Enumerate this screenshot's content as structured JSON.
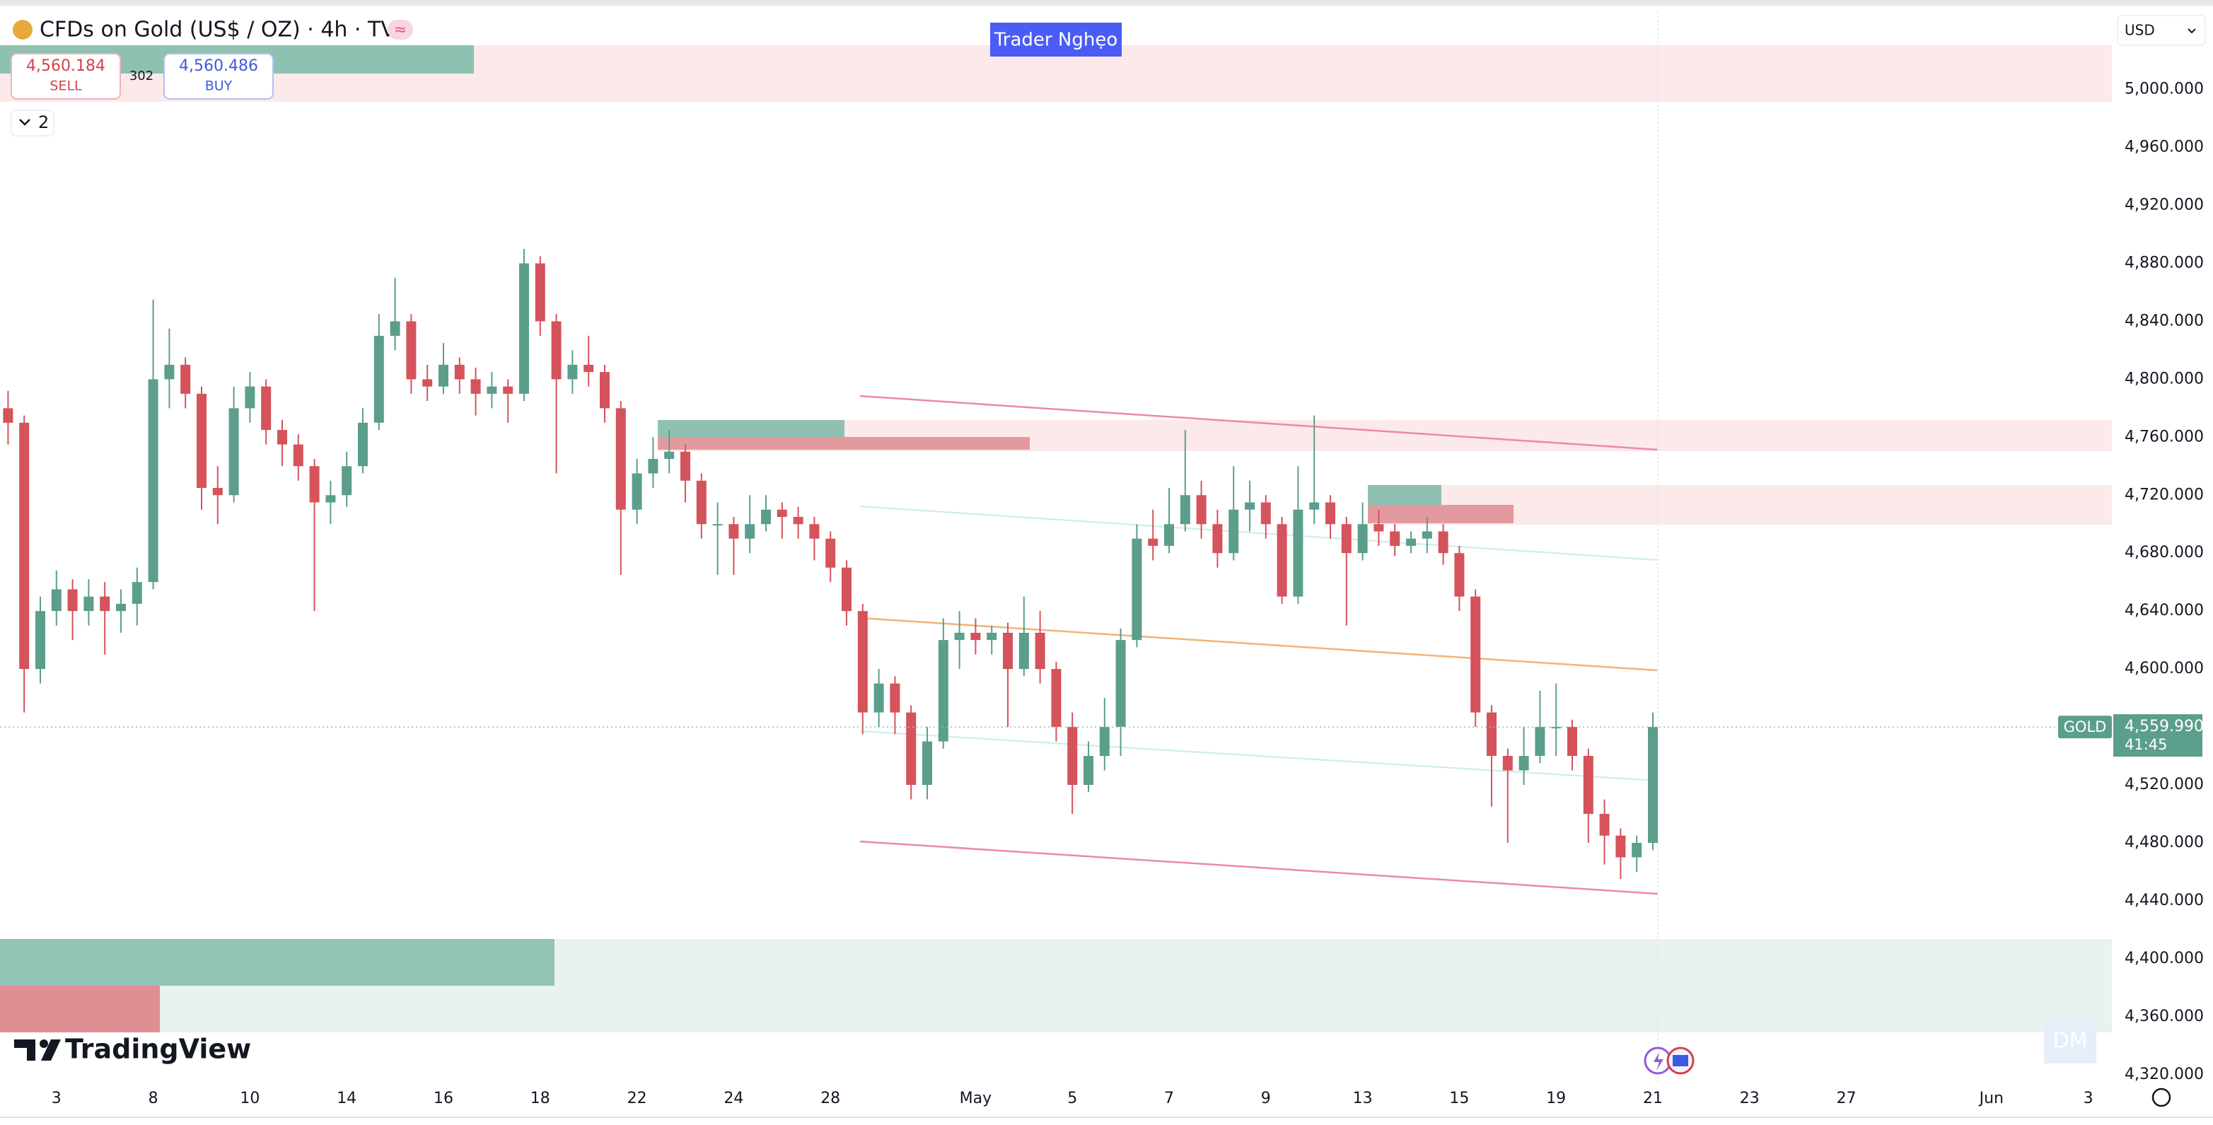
{
  "header": {
    "title": "CFDs on Gold (US$ / OZ) · 4h · TVC",
    "indicators_count": "2",
    "author": "Trader Nghẹo",
    "currency": "USD"
  },
  "trade": {
    "sell_price": "4,560.184",
    "sell": "SELL",
    "spread": "302",
    "buy_price": "4,560.486",
    "buy": "BUY"
  },
  "price_tag": {
    "symbol": "GOLD",
    "price": "4,559.990",
    "countdown": "41:45"
  },
  "footer": {
    "brand": "TradingView",
    "watermark": "DM"
  },
  "chart_data": {
    "type": "candlestick",
    "up_color": "#5b9e8c",
    "down_color": "#d5535b",
    "grid": false,
    "ylim": [
      4315,
      5054
    ],
    "yticks": [
      {
        "value": 5000,
        "label": "5,000.000"
      },
      {
        "value": 4960,
        "label": "4,960.000"
      },
      {
        "value": 4920,
        "label": "4,920.000"
      },
      {
        "value": 4880,
        "label": "4,880.000"
      },
      {
        "value": 4840,
        "label": "4,840.000"
      },
      {
        "value": 4800,
        "label": "4,800.000"
      },
      {
        "value": 4760,
        "label": "4,760.000"
      },
      {
        "value": 4720,
        "label": "4,720.000"
      },
      {
        "value": 4680,
        "label": "4,680.000"
      },
      {
        "value": 4640,
        "label": "4,640.000"
      },
      {
        "value": 4600,
        "label": "4,600.000"
      },
      {
        "value": 4520,
        "label": "4,520.000"
      },
      {
        "value": 4480,
        "label": "4,480.000"
      },
      {
        "value": 4440,
        "label": "4,440.000"
      },
      {
        "value": 4400,
        "label": "4,400.000"
      },
      {
        "value": 4360,
        "label": "4,360.000"
      },
      {
        "value": 4320,
        "label": "4,320.000"
      }
    ],
    "categories": [
      null,
      null,
      null,
      "3",
      null,
      null,
      null,
      null,
      null,
      "8",
      null,
      null,
      null,
      null,
      null,
      "10",
      null,
      null,
      null,
      null,
      null,
      "14",
      null,
      null,
      null,
      null,
      null,
      "16",
      null,
      null,
      null,
      null,
      null,
      "18",
      null,
      null,
      null,
      null,
      null,
      "22",
      null,
      null,
      null,
      null,
      null,
      "24",
      null,
      null,
      null,
      null,
      null,
      "28",
      null,
      null,
      null,
      null,
      null,
      null,
      null,
      null,
      "May",
      null,
      null,
      null,
      null,
      null,
      "5",
      null,
      null,
      null,
      null,
      null,
      "7",
      null,
      null,
      null,
      null,
      null,
      "9",
      null,
      null,
      null,
      null,
      null,
      "13",
      null,
      null,
      null,
      null,
      null,
      "15",
      null,
      null,
      null,
      null,
      null,
      "19",
      null,
      null,
      null,
      null,
      null,
      "21",
      null,
      null,
      null,
      null,
      null,
      "23",
      null,
      null,
      null,
      null,
      null,
      "27",
      null,
      null,
      null,
      null,
      null,
      null,
      null,
      null,
      "Jun",
      null,
      null,
      null,
      null,
      null,
      "3",
      null,
      null
    ],
    "candles": [
      [
        4780,
        4792,
        4755,
        4770
      ],
      [
        4770,
        4775,
        4570,
        4600
      ],
      [
        4600,
        4650,
        4590,
        4640
      ],
      [
        4640,
        4668,
        4630,
        4655
      ],
      [
        4655,
        4662,
        4620,
        4640
      ],
      [
        4640,
        4662,
        4630,
        4650
      ],
      [
        4650,
        4660,
        4610,
        4640
      ],
      [
        4640,
        4655,
        4625,
        4645
      ],
      [
        4645,
        4670,
        4630,
        4660
      ],
      [
        4660,
        4855,
        4655,
        4800
      ],
      [
        4800,
        4835,
        4780,
        4810
      ],
      [
        4810,
        4815,
        4780,
        4790
      ],
      [
        4790,
        4795,
        4710,
        4725
      ],
      [
        4725,
        4740,
        4700,
        4720
      ],
      [
        4720,
        4795,
        4715,
        4780
      ],
      [
        4780,
        4805,
        4770,
        4795
      ],
      [
        4795,
        4800,
        4755,
        4765
      ],
      [
        4765,
        4772,
        4740,
        4755
      ],
      [
        4755,
        4762,
        4730,
        4740
      ],
      [
        4740,
        4745,
        4640,
        4715
      ],
      [
        4715,
        4730,
        4700,
        4720
      ],
      [
        4720,
        4750,
        4712,
        4740
      ],
      [
        4740,
        4780,
        4735,
        4770
      ],
      [
        4770,
        4845,
        4765,
        4830
      ],
      [
        4830,
        4870,
        4820,
        4840
      ],
      [
        4840,
        4845,
        4790,
        4800
      ],
      [
        4800,
        4810,
        4785,
        4795
      ],
      [
        4795,
        4825,
        4790,
        4810
      ],
      [
        4810,
        4815,
        4790,
        4800
      ],
      [
        4800,
        4808,
        4775,
        4790
      ],
      [
        4790,
        4805,
        4780,
        4795
      ],
      [
        4795,
        4800,
        4770,
        4790
      ],
      [
        4790,
        4890,
        4785,
        4880
      ],
      [
        4880,
        4885,
        4830,
        4840
      ],
      [
        4840,
        4845,
        4735,
        4800
      ],
      [
        4800,
        4820,
        4790,
        4810
      ],
      [
        4810,
        4830,
        4795,
        4805
      ],
      [
        4805,
        4810,
        4770,
        4780
      ],
      [
        4780,
        4785,
        4665,
        4710
      ],
      [
        4710,
        4745,
        4700,
        4735
      ],
      [
        4735,
        4760,
        4725,
        4745
      ],
      [
        4745,
        4765,
        4735,
        4750
      ],
      [
        4750,
        4755,
        4715,
        4730
      ],
      [
        4730,
        4735,
        4690,
        4700
      ],
      [
        4700,
        4715,
        4665,
        4700
      ],
      [
        4700,
        4705,
        4665,
        4690
      ],
      [
        4690,
        4720,
        4680,
        4700
      ],
      [
        4700,
        4720,
        4695,
        4710
      ],
      [
        4710,
        4715,
        4690,
        4705
      ],
      [
        4705,
        4712,
        4690,
        4700
      ],
      [
        4700,
        4705,
        4675,
        4690
      ],
      [
        4690,
        4695,
        4660,
        4670
      ],
      [
        4670,
        4675,
        4630,
        4640
      ],
      [
        4640,
        4645,
        4555,
        4570
      ],
      [
        4570,
        4600,
        4560,
        4590
      ],
      [
        4590,
        4595,
        4555,
        4570
      ],
      [
        4570,
        4575,
        4510,
        4520
      ],
      [
        4520,
        4560,
        4510,
        4550
      ],
      [
        4550,
        4635,
        4545,
        4620
      ],
      [
        4620,
        4640,
        4600,
        4625
      ],
      [
        4625,
        4635,
        4610,
        4620
      ],
      [
        4620,
        4630,
        4610,
        4625
      ],
      [
        4625,
        4632,
        4560,
        4600
      ],
      [
        4600,
        4650,
        4595,
        4625
      ],
      [
        4625,
        4640,
        4590,
        4600
      ],
      [
        4600,
        4605,
        4550,
        4560
      ],
      [
        4560,
        4570,
        4500,
        4520
      ],
      [
        4520,
        4550,
        4515,
        4540
      ],
      [
        4540,
        4580,
        4530,
        4560
      ],
      [
        4560,
        4628,
        4540,
        4620
      ],
      [
        4620,
        4700,
        4615,
        4690
      ],
      [
        4690,
        4710,
        4675,
        4685
      ],
      [
        4685,
        4725,
        4680,
        4700
      ],
      [
        4700,
        4765,
        4695,
        4720
      ],
      [
        4720,
        4730,
        4690,
        4700
      ],
      [
        4700,
        4710,
        4670,
        4680
      ],
      [
        4680,
        4740,
        4675,
        4710
      ],
      [
        4710,
        4730,
        4695,
        4715
      ],
      [
        4715,
        4720,
        4690,
        4700
      ],
      [
        4700,
        4705,
        4645,
        4650
      ],
      [
        4650,
        4740,
        4645,
        4710
      ],
      [
        4710,
        4775,
        4700,
        4715
      ],
      [
        4715,
        4720,
        4690,
        4700
      ],
      [
        4700,
        4705,
        4630,
        4680
      ],
      [
        4680,
        4715,
        4675,
        4700
      ],
      [
        4700,
        4710,
        4685,
        4695
      ],
      [
        4695,
        4700,
        4678,
        4685
      ],
      [
        4685,
        4695,
        4680,
        4690
      ],
      [
        4690,
        4705,
        4680,
        4695
      ],
      [
        4695,
        4700,
        4672,
        4680
      ],
      [
        4680,
        4685,
        4640,
        4650
      ],
      [
        4650,
        4655,
        4560,
        4570
      ],
      [
        4570,
        4575,
        4505,
        4540
      ],
      [
        4540,
        4545,
        4480,
        4530
      ],
      [
        4530,
        4560,
        4520,
        4540
      ],
      [
        4540,
        4585,
        4535,
        4560
      ],
      [
        4560,
        4590,
        4540,
        4560
      ],
      [
        4560,
        4565,
        4530,
        4540
      ],
      [
        4540,
        4545,
        4480,
        4500
      ],
      [
        4500,
        4510,
        4465,
        4485
      ],
      [
        4485,
        4490,
        4455,
        4470
      ],
      [
        4470,
        4485,
        4460,
        4480
      ],
      [
        4480,
        4570,
        4475,
        4559.99
      ],
      null,
      null,
      null,
      null,
      null,
      null,
      null,
      null,
      null,
      null,
      null,
      null,
      null,
      null,
      null,
      null,
      null,
      null,
      null,
      null,
      null,
      null,
      null,
      null,
      null,
      null,
      null,
      null,
      null
    ]
  }
}
